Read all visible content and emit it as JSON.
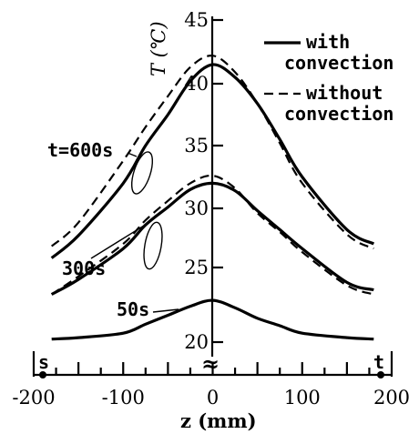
{
  "chart_data": {
    "type": "line",
    "title": "",
    "xlabel": "z (mm)",
    "ylabel": "T (℃)",
    "xlim": [
      -200,
      200
    ],
    "ylim": [
      20,
      45
    ],
    "x_ticks": [
      -200,
      -100,
      0,
      100,
      200
    ],
    "x_tick_labels": [
      "-200",
      "-100",
      "0",
      "100",
      "200"
    ],
    "y_ticks": [
      20,
      25,
      30,
      35,
      40,
      45
    ],
    "y_tick_labels": [
      "20",
      "25",
      "30",
      "35",
      "40",
      "45"
    ],
    "axis_break_symbol": "≈",
    "grid": false,
    "legend_position": "top-right",
    "legend": [
      {
        "label": "with convection",
        "style": "solid"
      },
      {
        "label": "without convection",
        "style": "dashed"
      }
    ],
    "endpoints": [
      {
        "label": "s",
        "z": -180
      },
      {
        "label": "t",
        "z": 180
      }
    ],
    "time_labels": [
      {
        "label": "t=600s",
        "series": "600s"
      },
      {
        "label": "300s",
        "series": "300s"
      },
      {
        "label": "50s",
        "series": "50s"
      }
    ],
    "x": [
      -180,
      -150,
      -100,
      -75,
      -50,
      -25,
      0,
      25,
      50,
      75,
      100,
      150,
      180
    ],
    "series": [
      {
        "name": "600s",
        "style": "solid",
        "values": [
          25.8,
          27.7,
          32.0,
          35.0,
          37.5,
          40.2,
          41.5,
          40.5,
          38.4,
          35.5,
          32.5,
          28.2,
          27.0
        ]
      },
      {
        "name": "600s",
        "style": "dashed",
        "values": [
          26.8,
          28.8,
          33.8,
          36.5,
          39.0,
          41.3,
          42.2,
          40.9,
          38.4,
          35.2,
          32.0,
          27.8,
          26.6
        ]
      },
      {
        "name": "300s",
        "style": "solid",
        "values": [
          23.2,
          24.2,
          26.6,
          28.6,
          30.1,
          31.5,
          32.0,
          31.4,
          29.8,
          28.2,
          26.6,
          24.0,
          23.5
        ]
      },
      {
        "name": "300s",
        "style": "dashed",
        "values": [
          23.2,
          24.4,
          27.0,
          29.0,
          30.6,
          32.0,
          32.6,
          31.6,
          29.6,
          28.0,
          26.3,
          23.8,
          23.2
        ]
      },
      {
        "name": "50s",
        "style": "solid",
        "values": [
          20.2,
          20.3,
          20.6,
          21.2,
          21.8,
          22.4,
          22.8,
          22.3,
          21.6,
          21.1,
          20.6,
          20.3,
          20.2
        ]
      }
    ]
  }
}
